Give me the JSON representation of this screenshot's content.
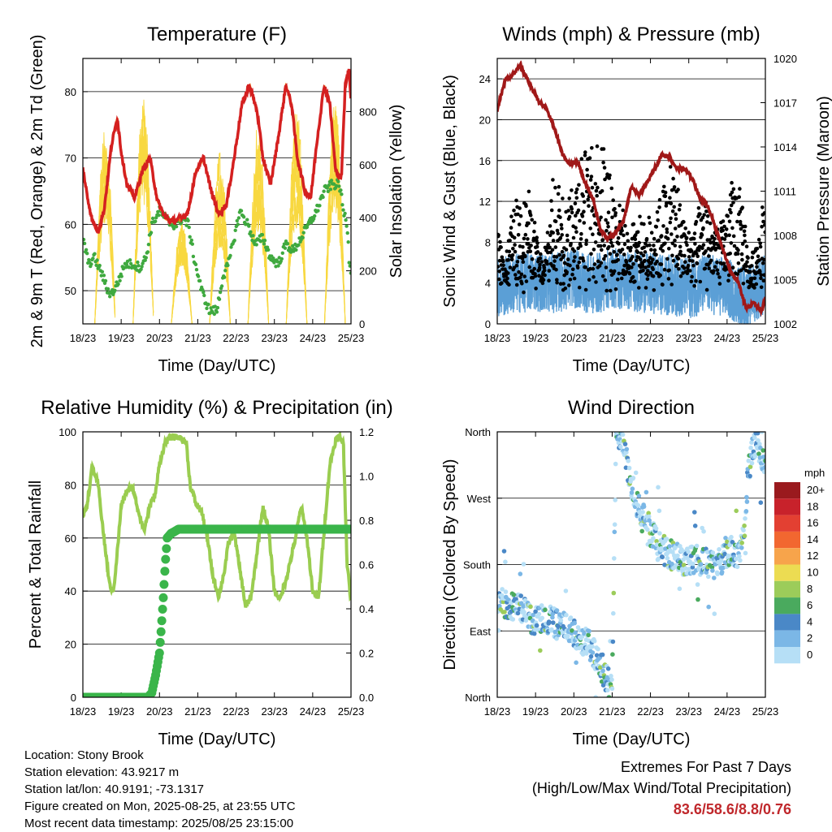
{
  "time_ticks": [
    "18/23",
    "19/23",
    "20/23",
    "21/23",
    "22/23",
    "23/23",
    "24/23",
    "25/23"
  ],
  "colors": {
    "temp2m": "#d42020",
    "temp9m": "#f08a1a",
    "dewpoint": "#3fa93f",
    "insolation": "#f8d840",
    "wind": "#5b9fd6",
    "gust": "#000000",
    "pressure": "#a01818",
    "rh": "#9acd50",
    "precip": "#3ab54a",
    "extremes": "#c0282c"
  },
  "chart_data": [
    {
      "type": "line",
      "title": "Temperature (F)",
      "xlabel": "Time (Day/UTC)",
      "ylabel": "2m & 9m T (Red, Orange) & 2m Td (Green)",
      "ylabel_right": "Solar Insolation (Yellow)",
      "ylim": [
        45,
        85
      ],
      "yticks": [
        50,
        60,
        70,
        80
      ],
      "ylim_right": [
        0,
        1000
      ],
      "yticks_right": [
        0,
        200,
        400,
        600,
        800
      ],
      "x_range_days": [
        0,
        7
      ],
      "grid": true,
      "series": [
        {
          "key": "temp",
          "x": [
            0,
            0.12,
            0.25,
            0.4,
            0.55,
            0.75,
            0.9,
            1,
            1.15,
            1.35,
            1.55,
            1.75,
            1.95,
            2.15,
            2.35,
            2.6,
            2.75,
            2.95,
            3.15,
            3.35,
            3.55,
            3.75,
            3.95,
            4.15,
            4.35,
            4.55,
            4.7,
            4.9,
            5.1,
            5.3,
            5.45,
            5.6,
            5.8,
            5.95,
            6.1,
            6.3,
            6.45,
            6.6,
            6.75,
            6.85,
            6.95,
            7
          ],
          "values": [
            68.5,
            64,
            60.5,
            59,
            62,
            72,
            76,
            71,
            66,
            64,
            68,
            70,
            63.5,
            61,
            60.5,
            61,
            62,
            68,
            70,
            65,
            61.5,
            63,
            70,
            78,
            81,
            77,
            70,
            66,
            73,
            81,
            78,
            70,
            65,
            64,
            72,
            81,
            78,
            68,
            67,
            81,
            83.5,
            79
          ]
        },
        {
          "key": "dewpoint",
          "x": [
            0,
            0.15,
            0.3,
            0.5,
            0.65,
            0.75,
            0.9,
            1.1,
            1.3,
            1.5,
            1.65,
            1.8,
            2,
            2.15,
            2.3,
            2.45,
            2.6,
            2.75,
            2.9,
            3.1,
            3.3,
            3.5,
            3.65,
            3.8,
            3.95,
            4.1,
            4.3,
            4.5,
            4.7,
            4.9,
            5.1,
            5.3,
            5.5,
            5.7,
            5.9,
            6.1,
            6.3,
            6.5,
            6.7,
            6.8,
            6.9,
            6.95,
            7
          ],
          "values": [
            58,
            54,
            55,
            52.5,
            50,
            49.5,
            51,
            54,
            54,
            53.5,
            55,
            60,
            62,
            61,
            60,
            60,
            61,
            60,
            55,
            50,
            47,
            47,
            52,
            54,
            58,
            62,
            60,
            57,
            58,
            55,
            54,
            57,
            56,
            58,
            60,
            62,
            65,
            66,
            66,
            62,
            60,
            55,
            53
          ]
        },
        {
          "key": "insolation",
          "days": [
            [
              0.58,
              820
            ],
            [
              1.58,
              880
            ],
            [
              2.58,
              410
            ],
            [
              3.58,
              680
            ],
            [
              4.58,
              860
            ],
            [
              5.58,
              850
            ],
            [
              6.58,
              870
            ]
          ]
        }
      ]
    },
    {
      "type": "line",
      "title": "Winds (mph) & Pressure (mb)",
      "xlabel": "Time (Day/UTC)",
      "ylabel": "Sonic Wind & Gust (Blue, Black)",
      "ylabel_right": "Station Pressure (Maroon)",
      "ylim": [
        0,
        26
      ],
      "yticks": [
        0,
        4,
        8,
        12,
        16,
        20,
        24
      ],
      "ylim_right": [
        1002,
        1020
      ],
      "yticks_right": [
        1002,
        1005,
        1008,
        1011,
        1014,
        1017,
        1020
      ],
      "x_range_days": [
        0,
        7
      ],
      "grid": true,
      "series": [
        {
          "key": "pressure",
          "x": [
            0,
            0.2,
            0.4,
            0.6,
            0.75,
            0.9,
            1.1,
            1.3,
            1.5,
            1.7,
            1.9,
            2.1,
            2.3,
            2.5,
            2.7,
            2.9,
            3.1,
            3.3,
            3.5,
            3.7,
            3.9,
            4.1,
            4.3,
            4.5,
            4.7,
            4.9,
            5.1,
            5.3,
            5.5,
            5.7,
            5.9,
            6.1,
            6.3,
            6.5,
            6.7,
            6.9,
            7
          ],
          "values": [
            1016.5,
            1018.5,
            1018.9,
            1019.5,
            1018.8,
            1018,
            1017,
            1016.5,
            1015.2,
            1013.5,
            1012.8,
            1013,
            1011.5,
            1010.5,
            1008.3,
            1007.8,
            1008.2,
            1009,
            1011.3,
            1010.7,
            1011.5,
            1012.5,
            1013.5,
            1013.3,
            1012.5,
            1012.5,
            1011.8,
            1010.5,
            1010,
            1008.5,
            1007,
            1005.5,
            1004.8,
            1003,
            1003.5,
            1002.8,
            1003.8
          ]
        },
        {
          "key": "wind_mean",
          "x": [
            0,
            0.5,
            1,
            1.5,
            2,
            2.5,
            3,
            3.5,
            4,
            4.5,
            5,
            5.5,
            6,
            6.5,
            7
          ],
          "values": [
            3.5,
            4,
            4.2,
            4,
            4.5,
            3.8,
            4.5,
            4.2,
            4,
            3.8,
            3.5,
            4,
            3.5,
            2.5,
            4
          ]
        },
        {
          "key": "gust_envelope",
          "x": [
            0,
            0.2,
            0.4,
            0.6,
            0.8,
            1,
            1.2,
            1.4,
            1.6,
            1.8,
            2,
            2.2,
            2.4,
            2.6,
            2.8,
            3,
            3.2,
            3.4,
            3.6,
            3.8,
            4,
            4.2,
            4.4,
            4.6,
            4.8,
            5,
            5.2,
            5.4,
            5.6,
            5.8,
            6,
            6.2,
            6.4,
            6.6,
            6.8,
            7
          ],
          "values": [
            9,
            5,
            11,
            12,
            13,
            9,
            5,
            13,
            14,
            12,
            15,
            17,
            16,
            19,
            18,
            14,
            12,
            8,
            11,
            9,
            10,
            12,
            14,
            15,
            12,
            9,
            10,
            12,
            11,
            9,
            11,
            15,
            12,
            5,
            9,
            13
          ]
        }
      ]
    },
    {
      "type": "line",
      "title": "Relative Humidity (%) & Precipitation (in)",
      "xlabel": "Time (Day/UTC)",
      "ylabel": "Percent & Total Rainfall",
      "ylim": [
        0,
        100
      ],
      "yticks": [
        0,
        20,
        40,
        60,
        80,
        100
      ],
      "ylim_right": [
        0,
        1.2
      ],
      "yticks_right": [
        "0.0",
        "0.2",
        "0.4",
        "0.6",
        "0.8",
        "1.0",
        "1.2"
      ],
      "x_range_days": [
        0,
        7
      ],
      "grid": true,
      "series": [
        {
          "key": "rh",
          "x": [
            0,
            0.1,
            0.25,
            0.4,
            0.55,
            0.7,
            0.8,
            0.9,
            1,
            1.15,
            1.3,
            1.45,
            1.6,
            1.75,
            1.9,
            2,
            2.15,
            2.3,
            2.5,
            2.7,
            2.8,
            2.95,
            3.1,
            3.25,
            3.4,
            3.55,
            3.7,
            3.8,
            3.95,
            4.1,
            4.25,
            4.4,
            4.55,
            4.7,
            4.85,
            5,
            5.15,
            5.35,
            5.55,
            5.7,
            5.85,
            6,
            6.15,
            6.3,
            6.45,
            6.6,
            6.7,
            6.8,
            6.9,
            7
          ],
          "values": [
            68,
            72,
            87,
            80,
            60,
            42,
            40,
            55,
            72,
            78,
            79,
            70,
            63,
            72,
            77,
            88,
            96,
            98,
            98,
            96,
            80,
            73,
            70,
            60,
            45,
            38,
            48,
            58,
            62,
            48,
            34,
            38,
            55,
            72,
            63,
            40,
            37,
            47,
            60,
            72,
            60,
            40,
            37,
            63,
            88,
            97,
            98,
            96,
            50,
            36
          ]
        },
        {
          "key": "precip",
          "x": [
            0,
            1.7,
            1.8,
            1.9,
            2,
            2.05,
            2.1,
            2.15,
            2.2,
            2.3,
            2.5,
            7
          ],
          "values": [
            0,
            0,
            0.02,
            0.1,
            0.2,
            0.32,
            0.45,
            0.6,
            0.72,
            0.74,
            0.76,
            0.76
          ]
        }
      ]
    },
    {
      "type": "scatter",
      "title": "Wind Direction",
      "xlabel": "Time (Day/UTC)",
      "ylabel": "Direction (Colored By Speed)",
      "ytick_labels": [
        "North",
        "East",
        "South",
        "West",
        "North"
      ],
      "x_range_days": [
        0,
        7
      ],
      "grid": true,
      "series": [
        {
          "key": "direction",
          "x": [
            0,
            0.3,
            0.6,
            0.9,
            1.2,
            1.5,
            1.8,
            2.1,
            2.4,
            2.7,
            2.9,
            3,
            3.1,
            3.3,
            3.45,
            3.6,
            3.8,
            4,
            4.2,
            4.5,
            4.8,
            5.1,
            5.4,
            5.7,
            5.9,
            6.1,
            6.3,
            6.45,
            6.55,
            6.65,
            6.8,
            7
          ],
          "values": [
            140,
            120,
            125,
            105,
            108,
            100,
            95,
            85,
            70,
            45,
            20,
            5,
            358,
            340,
            300,
            270,
            250,
            225,
            205,
            195,
            185,
            188,
            185,
            180,
            190,
            200,
            195,
            230,
            300,
            335,
            340,
            310
          ]
        }
      ]
    }
  ],
  "legend": {
    "title": "mph",
    "entries": [
      {
        "label": "20+",
        "color": "#9a1a1e"
      },
      {
        "label": "18",
        "color": "#c8222b"
      },
      {
        "label": "16",
        "color": "#e34032"
      },
      {
        "label": "14",
        "color": "#f26730"
      },
      {
        "label": "12",
        "color": "#f7a44b"
      },
      {
        "label": "10",
        "color": "#ecdc52"
      },
      {
        "label": "8",
        "color": "#9ccc5a"
      },
      {
        "label": "6",
        "color": "#4aaa5e"
      },
      {
        "label": "4",
        "color": "#4a88c7"
      },
      {
        "label": "2",
        "color": "#7bb7e6"
      },
      {
        "label": "0",
        "color": "#b6dff6"
      }
    ]
  },
  "info": {
    "location": "Location: Stony Brook",
    "elevation": "Station elevation: 43.9217 m",
    "latlon": "Station lat/lon: 40.9191; -73.1317",
    "created": "Figure created on Mon, 2025-08-25, at 23:55 UTC",
    "timestamp": "Most recent data timestamp: 2025/08/25 23:15:00"
  },
  "extremes": {
    "heading": "Extremes For Past 7 Days",
    "subheading": "(High/Low/Max Wind/Total Precipitation)",
    "values": "83.6/58.6/8.8/0.76"
  }
}
